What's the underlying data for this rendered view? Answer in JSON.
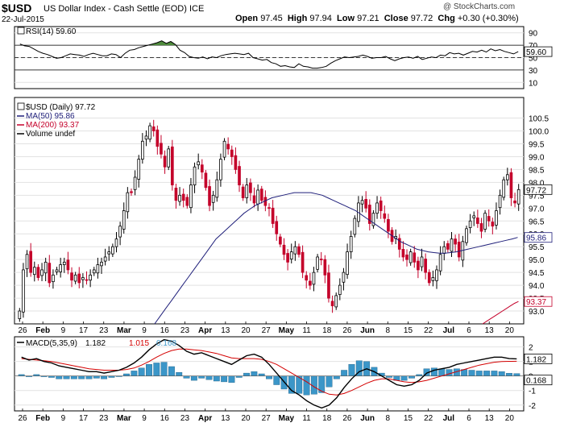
{
  "header": {
    "symbol": "$USD",
    "description": "US Dollar Index - Cash Settle (EOD) ICE",
    "date": "22-Jul-2015",
    "watermark": "@ StockCharts.com",
    "open_label": "Open",
    "open": "97.45",
    "high_label": "High",
    "high": "97.94",
    "low_label": "Low",
    "low": "97.21",
    "close_label": "Close",
    "close": "97.72",
    "chg_label": "Chg",
    "chg": "+0.30 (+0.30%)"
  },
  "colors": {
    "up": "#000000",
    "down": "#c4002a",
    "ma50": "#1f1f7a",
    "ma200": "#c4002a",
    "macd_line": "#000000",
    "signal_line": "#d40000",
    "histogram": "#3b96c8",
    "rsi_fill": "#4e8a3c"
  },
  "chart_data": [
    {
      "type": "line",
      "panel": "RSI",
      "legend": "RSI(14) 59.60",
      "current_label": "59.60",
      "ylim": [
        0,
        100
      ],
      "yticks": [
        90,
        70,
        50,
        30,
        10
      ],
      "reference_lines": [
        70,
        30
      ],
      "values": [
        72,
        69,
        68,
        64,
        60,
        57,
        55,
        52,
        49,
        50,
        53,
        56,
        55,
        54,
        52,
        55,
        57,
        55,
        53,
        53,
        56,
        55,
        50,
        57,
        62,
        63,
        66,
        68,
        70,
        72,
        74,
        77,
        73,
        76,
        71,
        62,
        58,
        52,
        50,
        49,
        51,
        48,
        51,
        50,
        53,
        55,
        56,
        57,
        56,
        55,
        57,
        50,
        48,
        46,
        47,
        42,
        40,
        36,
        37,
        35,
        34,
        40,
        36,
        35,
        33,
        33,
        34,
        36,
        41,
        45,
        48,
        51,
        50,
        51,
        52,
        54,
        52,
        49,
        50,
        50,
        52,
        48,
        45,
        48,
        50,
        51,
        49,
        52,
        47,
        49,
        51,
        50,
        54,
        53,
        58,
        56,
        57,
        54,
        57,
        60,
        59,
        62,
        59,
        64,
        61,
        63,
        60,
        58,
        56,
        59.6
      ]
    },
    {
      "type": "candlestick",
      "panel": "Price",
      "legend": [
        "$USD (Daily) 97.72",
        "MA(50) 95.86",
        "MA(200) 93.37",
        "Volume undef"
      ],
      "ylim": [
        92.5,
        101.3
      ],
      "yticks": [
        93.0,
        93.5,
        94.0,
        94.5,
        95.0,
        95.5,
        96.0,
        96.5,
        97.0,
        97.5,
        98.0,
        98.5,
        99.0,
        99.5,
        100.0,
        100.5
      ],
      "ytick_labels": [
        "93.0",
        "93.5",
        "94.0",
        "94.5",
        "95.0",
        "95.5",
        "96.0",
        "96.5",
        "97.0",
        "97.5",
        "98.0",
        "98.5",
        "99.0",
        "99.5",
        "100.0",
        "100.5"
      ],
      "last_labels": {
        "close": "97.72",
        "ma50": "95.86",
        "ma200": "93.37"
      },
      "closes": [
        93.0,
        94.6,
        95.2,
        94.5,
        94.7,
        94.3,
        94.6,
        94.9,
        94.1,
        94.4,
        94.6,
        94.8,
        94.9,
        94.6,
        94.2,
        94.4,
        94.1,
        94.3,
        94.2,
        94.4,
        94.6,
        94.8,
        94.9,
        95.1,
        95.3,
        95.5,
        95.8,
        96.3,
        96.9,
        97.6,
        97.6,
        98.2,
        98.9,
        99.6,
        99.8,
        100.2,
        100.0,
        99.4,
        99.1,
        98.6,
        99.3,
        97.9,
        97.3,
        97.5,
        97.3,
        97.1,
        97.9,
        98.6,
        98.8,
        98.4,
        97.8,
        97.1,
        97.5,
        98.1,
        98.9,
        99.6,
        99.3,
        99.0,
        98.5,
        97.9,
        97.4,
        97.9,
        97.6,
        97.2,
        97.7,
        97.3,
        97.1,
        97.0,
        96.4,
        96.0,
        95.6,
        95.2,
        94.9,
        95.3,
        95.5,
        95.2,
        94.5,
        94.2,
        94.0,
        94.5,
        95.1,
        95.0,
        94.4,
        93.5,
        93.2,
        93.6,
        94.0,
        94.5,
        95.3,
        95.9,
        96.6,
        97.2,
        97.3,
        97.0,
        96.4,
        96.8,
        97.2,
        96.9,
        96.6,
        96.1,
        95.7,
        95.9,
        95.4,
        95.1,
        95.0,
        95.3,
        94.9,
        94.6,
        95.1,
        94.5,
        94.1,
        94.3,
        94.6,
        95.2,
        95.5,
        95.4,
        95.8,
        95.6,
        95.1,
        95.7,
        96.2,
        96.5,
        96.7,
        96.4,
        96.1,
        96.8,
        96.5,
        96.3,
        96.9,
        97.5,
        98.1,
        98.3,
        97.4,
        97.2,
        97.72
      ],
      "ma50": [
        null,
        null,
        null,
        null,
        null,
        null,
        null,
        null,
        null,
        null,
        null,
        null,
        null,
        null,
        null,
        null,
        null,
        null,
        null,
        null,
        null,
        null,
        null,
        null,
        92.5,
        92.8,
        93.1,
        93.4,
        93.7,
        94.0,
        94.3,
        94.6,
        94.9,
        95.2,
        95.5,
        95.8,
        96.0,
        96.2,
        96.4,
        96.6,
        96.8,
        96.95,
        97.1,
        97.2,
        97.3,
        97.4,
        97.45,
        97.5,
        97.55,
        97.6,
        97.6,
        97.6,
        97.6,
        97.55,
        97.5,
        97.4,
        97.3,
        97.2,
        97.1,
        97.0,
        96.9,
        96.75,
        96.6,
        96.45,
        96.3,
        96.15,
        96.0,
        95.85,
        95.7,
        95.6,
        95.5,
        95.4,
        95.35,
        95.3,
        95.27,
        95.25,
        95.25,
        95.27,
        95.3,
        95.35,
        95.4,
        95.45,
        95.5,
        95.55,
        95.6,
        95.65,
        95.7,
        95.75,
        95.8,
        95.86
      ],
      "ma200": [
        null,
        null,
        null,
        null,
        null,
        null,
        null,
        null,
        null,
        null,
        null,
        null,
        null,
        null,
        null,
        null,
        null,
        null,
        null,
        null,
        null,
        null,
        null,
        null,
        null,
        null,
        null,
        null,
        null,
        null,
        null,
        null,
        null,
        null,
        null,
        null,
        null,
        null,
        null,
        null,
        null,
        null,
        null,
        null,
        null,
        null,
        null,
        null,
        null,
        null,
        null,
        null,
        null,
        null,
        null,
        null,
        null,
        null,
        null,
        null,
        null,
        null,
        null,
        null,
        null,
        null,
        null,
        null,
        null,
        null,
        null,
        null,
        null,
        null,
        null,
        null,
        null,
        null,
        null,
        null,
        null,
        null,
        null,
        null,
        null,
        null,
        null,
        null,
        null,
        null,
        null,
        null,
        null,
        null,
        null,
        null,
        null,
        null,
        null,
        null,
        null,
        null,
        null,
        null,
        null,
        null,
        null,
        null,
        null,
        null,
        null,
        null,
        null,
        null,
        null,
        null,
        92.5,
        92.6,
        92.7,
        92.8,
        92.9,
        93.0,
        93.1,
        93.2,
        93.3,
        93.37
      ]
    },
    {
      "type": "line",
      "panel": "MACD",
      "legend_prefix": "MACD(5,35,9)",
      "legend_macd": "1.182",
      "legend_signal": "1.015",
      "legend_hist": "0.168",
      "current_labels": {
        "macd": "1.182",
        "hist": "0.168"
      },
      "ylim": [
        -2.4,
        2.7
      ],
      "yticks": [
        2,
        1,
        0,
        -1,
        -2
      ],
      "macd": [
        1.3,
        1.1,
        1.2,
        1.0,
        0.9,
        0.7,
        0.6,
        0.5,
        0.4,
        0.3,
        0.3,
        0.2,
        0.3,
        0.4,
        0.6,
        0.9,
        1.3,
        1.8,
        2.2,
        2.5,
        2.4,
        2.1,
        1.7,
        1.5,
        1.6,
        1.4,
        1.2,
        1.0,
        0.8,
        1.1,
        1.4,
        1.5,
        1.3,
        0.8,
        0.2,
        -0.4,
        -1.0,
        -1.3,
        -1.7,
        -2.0,
        -2.2,
        -2.0,
        -1.5,
        -0.8,
        -0.2,
        0.3,
        0.5,
        0.3,
        0.0,
        -0.3,
        -0.6,
        -0.7,
        -0.6,
        -0.3,
        0.2,
        0.4,
        0.5,
        0.6,
        0.8,
        0.9,
        1.0,
        1.1,
        1.2,
        1.3,
        1.3,
        1.2,
        1.182
      ],
      "signal": [
        1.2,
        1.15,
        1.1,
        1.05,
        1.0,
        0.9,
        0.8,
        0.7,
        0.6,
        0.5,
        0.45,
        0.4,
        0.4,
        0.4,
        0.45,
        0.55,
        0.75,
        1.0,
        1.3,
        1.55,
        1.75,
        1.85,
        1.85,
        1.8,
        1.75,
        1.65,
        1.55,
        1.4,
        1.25,
        1.2,
        1.2,
        1.2,
        1.15,
        1.0,
        0.8,
        0.5,
        0.2,
        -0.1,
        -0.4,
        -0.75,
        -1.05,
        -1.25,
        -1.3,
        -1.2,
        -1.0,
        -0.75,
        -0.5,
        -0.3,
        -0.2,
        -0.2,
        -0.3,
        -0.4,
        -0.45,
        -0.4,
        -0.3,
        -0.15,
        0.0,
        0.15,
        0.3,
        0.45,
        0.6,
        0.75,
        0.85,
        0.95,
        1.0,
        1.01,
        1.015
      ],
      "histogram": [
        0.1,
        -0.05,
        0.1,
        -0.05,
        -0.1,
        -0.2,
        -0.2,
        -0.2,
        -0.2,
        -0.2,
        -0.15,
        -0.2,
        -0.1,
        0.0,
        0.15,
        0.35,
        0.55,
        0.8,
        0.9,
        0.95,
        0.65,
        0.25,
        -0.15,
        -0.3,
        -0.15,
        -0.25,
        -0.35,
        -0.4,
        -0.45,
        -0.1,
        0.2,
        0.3,
        0.15,
        -0.2,
        -0.6,
        -0.9,
        -1.2,
        -1.2,
        -1.3,
        -1.25,
        -1.15,
        -0.75,
        -0.2,
        0.4,
        0.8,
        1.05,
        1.0,
        0.6,
        0.2,
        -0.1,
        -0.3,
        -0.3,
        -0.15,
        0.1,
        0.5,
        0.55,
        0.5,
        0.45,
        0.5,
        0.45,
        0.4,
        0.35,
        0.35,
        0.35,
        0.3,
        0.19,
        0.168
      ]
    }
  ],
  "x_axis": {
    "labels": [
      "26",
      "Feb",
      "9",
      "17",
      "23",
      "Mar",
      "9",
      "16",
      "23",
      "Apr",
      "13",
      "20",
      "27",
      "May",
      "11",
      "18",
      "26",
      "Jun",
      "8",
      "15",
      "22",
      "Jul",
      "6",
      "13",
      "20"
    ],
    "bold": [
      "Feb",
      "Mar",
      "Apr",
      "May",
      "Jun",
      "Jul"
    ]
  }
}
